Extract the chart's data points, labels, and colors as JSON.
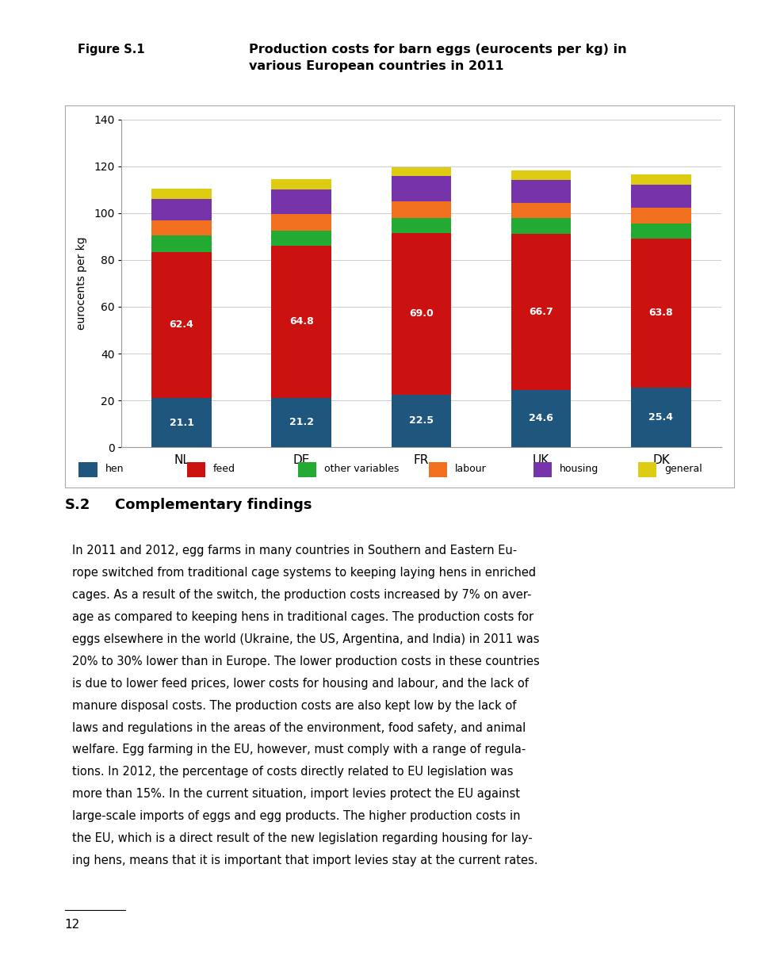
{
  "figure_label": "Figure S.1",
  "chart_title": "Production costs for barn eggs (eurocents per kg) in\nvarious European countries in 2011",
  "countries": [
    "NL",
    "DE",
    "FR",
    "UK",
    "DK"
  ],
  "segments": {
    "hen": [
      21.1,
      21.2,
      22.5,
      24.6,
      25.4
    ],
    "feed": [
      62.4,
      64.8,
      69.0,
      66.7,
      63.8
    ],
    "other variables": [
      7.0,
      6.5,
      6.5,
      6.5,
      6.5
    ],
    "labour": [
      6.5,
      7.0,
      7.0,
      6.5,
      6.5
    ],
    "housing": [
      9.0,
      10.5,
      11.0,
      10.0,
      10.0
    ],
    "general": [
      4.5,
      4.5,
      3.5,
      4.0,
      4.5
    ]
  },
  "colors": {
    "hen": "#1f567d",
    "feed": "#cc1111",
    "other variables": "#22aa33",
    "labour": "#f07020",
    "housing": "#7733aa",
    "general": "#ddcc11"
  },
  "ylabel": "eurocents per kg",
  "ylim": [
    0,
    140
  ],
  "yticks": [
    0,
    20,
    40,
    60,
    80,
    100,
    120,
    140
  ],
  "bar_width": 0.5,
  "section_number": "S.2",
  "section_title": "Complementary findings",
  "body_lines": [
    "In 2011 and 2012, egg farms in many countries in Southern and Eastern Eu-",
    "rope switched from traditional cage systems to keeping laying hens in enriched",
    "cages. As a result of the switch, the production costs increased by 7% on aver-",
    "age as compared to keeping hens in traditional cages. The production costs for",
    "eggs elsewhere in the world (Ukraine, the US, Argentina, and India) in 2011 was",
    "20% to 30% lower than in Europe. The lower production costs in these countries",
    "is due to lower feed prices, lower costs for housing and labour, and the lack of",
    "manure disposal costs. The production costs are also kept low by the lack of",
    "laws and regulations in the areas of the environment, food safety, and animal",
    "welfare. Egg farming in the EU, however, must comply with a range of regula-",
    "tions. In 2012, the percentage of costs directly related to EU legislation was",
    "more than 15%. In the current situation, import levies protect the EU against",
    "large-scale imports of eggs and egg products. The higher production costs in",
    "the EU, which is a direct result of the new legislation regarding housing for lay-",
    "ing hens, means that it is important that import levies stay at the current rates."
  ],
  "page_number": "12",
  "bg_header_dark": "#c0c0c0",
  "bg_header_light": "#d8d8d8",
  "bg_chart": "#ffffff",
  "bg_page": "#ffffff",
  "grid_color": "#cccccc",
  "border_color": "#aaaaaa"
}
